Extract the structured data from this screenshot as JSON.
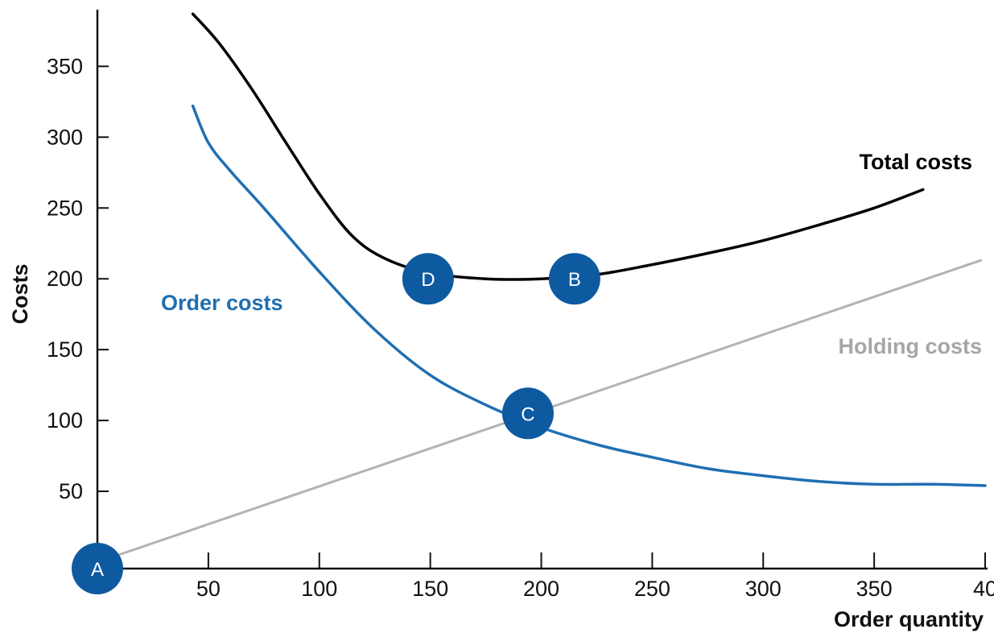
{
  "chart_data": {
    "type": "line",
    "title": "",
    "xlabel": "Order quantity",
    "ylabel": "Costs",
    "xlim": [
      0,
      400
    ],
    "ylim": [
      0,
      390
    ],
    "x_tick_labels": [
      "50",
      "100",
      "150",
      "200",
      "250",
      "300",
      "350",
      "40"
    ],
    "y_ticks": [
      50,
      100,
      150,
      200,
      250,
      300,
      350
    ],
    "grid": false,
    "series": [
      {
        "name": "Total costs",
        "color": "#000000",
        "x": [
          43,
          55,
          70,
          85,
          100,
          115,
          130,
          150,
          175,
          200,
          225,
          250,
          275,
          300,
          325,
          350,
          372
        ],
        "y": [
          387,
          366,
          333,
          296,
          260,
          230,
          214,
          204,
          200,
          200,
          203,
          210,
          218,
          227,
          238,
          250,
          263
        ]
      },
      {
        "name": "Order costs",
        "color": "#1f6fb2",
        "x": [
          43,
          50,
          60,
          75,
          100,
          125,
          150,
          175,
          200,
          225,
          250,
          275,
          300,
          325,
          350,
          375,
          400
        ],
        "y": [
          322,
          296,
          276,
          250,
          205,
          164,
          132,
          111,
          95,
          83,
          74,
          66,
          61,
          57,
          55,
          55,
          54
        ]
      },
      {
        "name": "Holding costs",
        "color": "#b3b3b3",
        "x": [
          0,
          398
        ],
        "y": [
          0,
          213
        ]
      }
    ],
    "annotations": [
      {
        "label": "A",
        "x": 0,
        "y": 0
      },
      {
        "label": "B",
        "x": 215,
        "y": 200
      },
      {
        "label": "C",
        "x": 194,
        "y": 105
      },
      {
        "label": "D",
        "x": 149,
        "y": 200
      }
    ],
    "marker_color": "#0d5aa1"
  }
}
